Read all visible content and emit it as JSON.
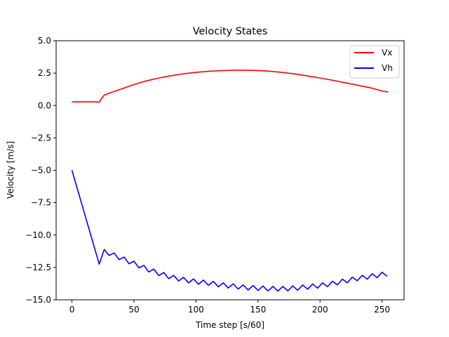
{
  "chart_data": {
    "type": "line",
    "title": "Velocity States",
    "xlabel": "Time step [s/60]",
    "ylabel": "Velocity [m/s]",
    "xlim": [
      -12.75,
      267.75
    ],
    "ylim": [
      -15.0,
      5.0
    ],
    "xticks": [
      0,
      50,
      100,
      150,
      200,
      250
    ],
    "yticks": [
      5.0,
      2.5,
      0.0,
      -2.5,
      -5.0,
      -7.5,
      -10.0,
      -12.5,
      -15.0
    ],
    "xtick_labels": [
      "0",
      "50",
      "100",
      "150",
      "200",
      "250"
    ],
    "ytick_labels": [
      "5.0",
      "2.5",
      "0.0",
      "−2.5",
      "−5.0",
      "−7.5",
      "−10.0",
      "−12.5",
      "−15.0"
    ],
    "grid": false,
    "legend_position": "top-right",
    "series": [
      {
        "name": "Vx",
        "color": "#ff0000",
        "x": [
          0,
          10,
          20,
          22,
          24,
          26,
          30,
          40,
          50,
          60,
          70,
          80,
          90,
          100,
          110,
          120,
          130,
          140,
          150,
          160,
          170,
          180,
          190,
          200,
          210,
          220,
          230,
          240,
          250,
          255
        ],
        "y": [
          0.28,
          0.28,
          0.28,
          0.25,
          0.55,
          0.8,
          0.95,
          1.28,
          1.62,
          1.9,
          2.12,
          2.3,
          2.45,
          2.56,
          2.64,
          2.69,
          2.72,
          2.72,
          2.7,
          2.64,
          2.55,
          2.43,
          2.28,
          2.12,
          1.95,
          1.76,
          1.57,
          1.38,
          1.12,
          1.03
        ]
      },
      {
        "name": "Vh",
        "color": "#0000ff",
        "x": [
          0,
          22,
          26,
          30,
          40,
          50,
          60,
          70,
          80,
          90,
          100,
          110,
          120,
          130,
          140,
          150,
          160,
          170,
          180,
          190,
          200,
          210,
          220,
          230,
          240,
          250,
          255
        ],
        "y": [
          -5.0,
          -12.25,
          -11.3,
          -11.4,
          -11.8,
          -12.2,
          -12.6,
          -12.95,
          -13.25,
          -13.45,
          -13.6,
          -13.7,
          -13.85,
          -13.95,
          -14.05,
          -14.1,
          -14.15,
          -14.15,
          -14.1,
          -14.0,
          -13.9,
          -13.75,
          -13.55,
          -13.35,
          -13.2,
          -13.05,
          -13.0
        ],
        "oscillation": 0.18
      }
    ]
  }
}
